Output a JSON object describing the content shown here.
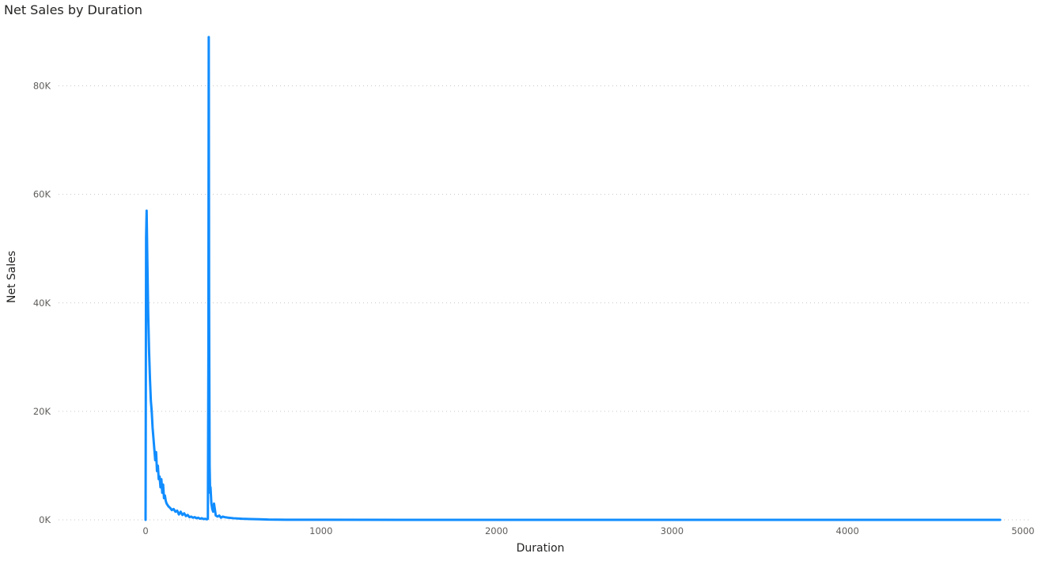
{
  "chart_data": {
    "type": "line",
    "title": "Net Sales by Duration",
    "xlabel": "Duration",
    "ylabel": "Net Sales",
    "xlim": [
      -500,
      5000
    ],
    "ylim": [
      0,
      90000
    ],
    "x_ticks": [
      0,
      1000,
      2000,
      3000,
      4000,
      5000
    ],
    "x_tick_labels": [
      "0",
      "1000",
      "2000",
      "3000",
      "4000",
      "5000"
    ],
    "y_ticks": [
      0,
      20000,
      40000,
      60000,
      80000
    ],
    "y_tick_labels": [
      "0K",
      "20K",
      "40K",
      "60K",
      "80K"
    ],
    "grid": true,
    "line_color": "#118DFF",
    "series": [
      {
        "x": [
          0,
          3,
          6,
          10,
          15,
          20,
          25,
          30,
          35,
          40,
          45,
          50,
          55,
          60,
          65,
          70,
          75,
          80,
          85,
          90,
          95,
          100,
          105,
          110,
          115,
          120,
          130,
          140,
          150,
          160,
          170,
          180,
          190,
          200,
          210,
          220,
          230,
          240,
          250,
          260,
          270,
          280,
          290,
          300,
          310,
          320,
          330,
          340,
          350,
          355,
          358,
          360,
          362,
          365,
          368,
          370,
          375,
          380,
          385,
          390,
          400,
          410,
          420,
          430,
          440,
          450,
          470,
          500,
          550,
          600,
          650,
          700,
          800,
          1000,
          1500,
          2000,
          2500,
          3000,
          3500,
          4000,
          4500,
          4870
        ],
        "y": [
          0,
          52000,
          57000,
          48000,
          38000,
          31000,
          26000,
          22000,
          20000,
          17000,
          15000,
          13000,
          11000,
          12500,
          9000,
          10000,
          7500,
          8000,
          6000,
          7500,
          5000,
          6500,
          4000,
          4500,
          3500,
          3000,
          2500,
          2200,
          1800,
          2000,
          1500,
          1700,
          1000,
          1500,
          900,
          1200,
          700,
          900,
          500,
          600,
          400,
          500,
          300,
          400,
          200,
          300,
          150,
          200,
          100,
          200,
          30000,
          89000,
          40000,
          10000,
          5000,
          6000,
          3000,
          2000,
          1500,
          3000,
          800,
          600,
          800,
          400,
          600,
          500,
          400,
          300,
          200,
          150,
          100,
          50,
          20,
          10,
          0,
          0,
          0,
          0,
          0,
          0,
          0,
          0
        ]
      }
    ]
  }
}
